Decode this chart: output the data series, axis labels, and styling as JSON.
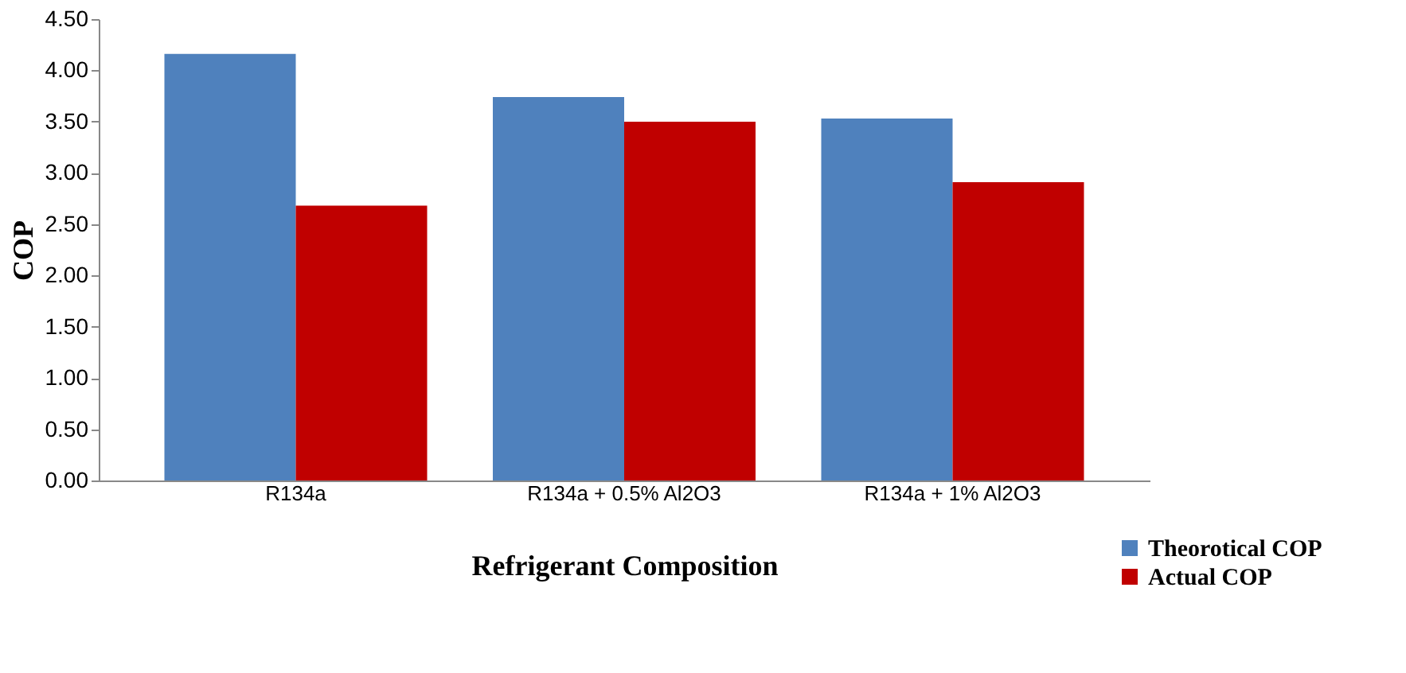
{
  "chart_data": {
    "type": "bar",
    "xlabel": "Refrigerant Composition",
    "ylabel": "COP",
    "categories": [
      "R134a",
      "R134a + 0.5% Al2O3",
      "R134a + 1% Al2O3"
    ],
    "series": [
      {
        "name": "Theorotical COP",
        "color": "#4f81bd",
        "values": [
          4.16,
          3.74,
          3.53
        ]
      },
      {
        "name": "Actual COP",
        "color": "#c00000",
        "values": [
          2.68,
          3.5,
          2.91
        ]
      }
    ],
    "ylim": [
      0,
      4.5
    ],
    "yticks": [
      {
        "value": 0,
        "label": "0.00"
      },
      {
        "value": 0.5,
        "label": "0.50"
      },
      {
        "value": 1,
        "label": "1.00"
      },
      {
        "value": 1.5,
        "label": "1.50"
      },
      {
        "value": 2,
        "label": "2.00"
      },
      {
        "value": 2.5,
        "label": "2.50"
      },
      {
        "value": 3,
        "label": "3.00"
      },
      {
        "value": 3.5,
        "label": "3.50"
      },
      {
        "value": 4,
        "label": "4.00"
      },
      {
        "value": 4.5,
        "label": "4.50"
      }
    ],
    "grid": false,
    "legend": "bottom right"
  }
}
